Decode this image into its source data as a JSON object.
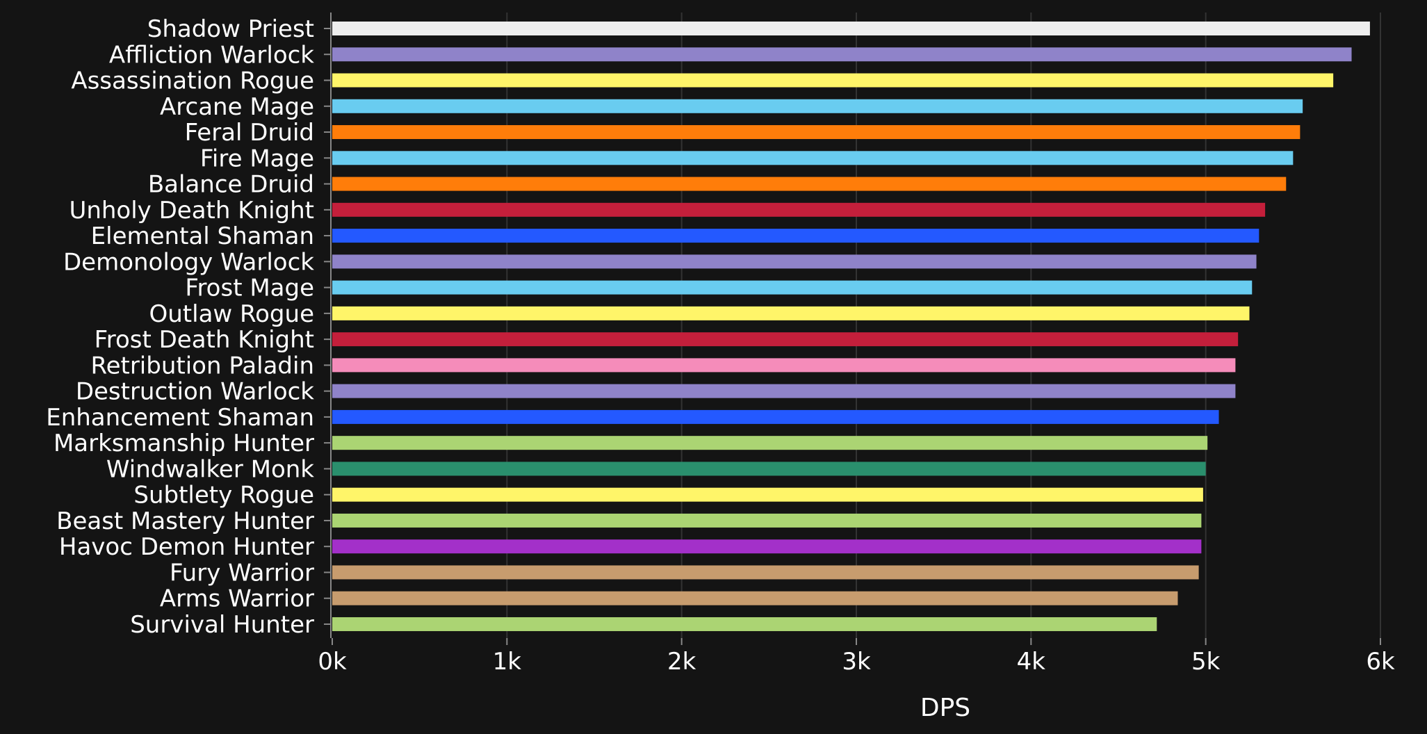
{
  "chart_data": {
    "type": "bar",
    "orientation": "horizontal",
    "xlabel": "DPS",
    "ylabel": "",
    "xlim": [
      0,
      6000
    ],
    "xticks": [
      {
        "value": 0,
        "label": "0k"
      },
      {
        "value": 1000,
        "label": "1k"
      },
      {
        "value": 2000,
        "label": "2k"
      },
      {
        "value": 3000,
        "label": "3k"
      },
      {
        "value": 4000,
        "label": "4k"
      },
      {
        "value": 5000,
        "label": "5k"
      },
      {
        "value": 6000,
        "label": "6k"
      }
    ],
    "grid": "vertical",
    "legend": "none",
    "bars": [
      {
        "category": "Shadow Priest",
        "value": 5940,
        "color": "#eeeeee"
      },
      {
        "category": "Affliction Warlock",
        "value": 5835,
        "color": "#8f83c9"
      },
      {
        "category": "Assassination Rogue",
        "value": 5730,
        "color": "#fff569"
      },
      {
        "category": "Arcane Mage",
        "value": 5555,
        "color": "#69ccf0"
      },
      {
        "category": "Feral Druid",
        "value": 5540,
        "color": "#ff7d0a"
      },
      {
        "category": "Fire Mage",
        "value": 5500,
        "color": "#69ccf0"
      },
      {
        "category": "Balance Druid",
        "value": 5460,
        "color": "#ff7d0a"
      },
      {
        "category": "Unholy Death Knight",
        "value": 5340,
        "color": "#c41f3b"
      },
      {
        "category": "Elemental Shaman",
        "value": 5305,
        "color": "#2459ff"
      },
      {
        "category": "Demonology Warlock",
        "value": 5290,
        "color": "#8f83c9"
      },
      {
        "category": "Frost Mage",
        "value": 5265,
        "color": "#69ccf0"
      },
      {
        "category": "Outlaw Rogue",
        "value": 5250,
        "color": "#fff569"
      },
      {
        "category": "Frost Death Knight",
        "value": 5185,
        "color": "#c41f3b"
      },
      {
        "category": "Retribution Paladin",
        "value": 5170,
        "color": "#f58cba"
      },
      {
        "category": "Destruction Warlock",
        "value": 5170,
        "color": "#8f83c9"
      },
      {
        "category": "Enhancement Shaman",
        "value": 5075,
        "color": "#2459ff"
      },
      {
        "category": "Marksmanship Hunter",
        "value": 5010,
        "color": "#abd473"
      },
      {
        "category": "Windwalker Monk",
        "value": 5000,
        "color": "#2a8f6d"
      },
      {
        "category": "Subtlety Rogue",
        "value": 4985,
        "color": "#fff569"
      },
      {
        "category": "Beast Mastery Hunter",
        "value": 4975,
        "color": "#abd473"
      },
      {
        "category": "Havoc Demon Hunter",
        "value": 4975,
        "color": "#a330c9"
      },
      {
        "category": "Fury Warrior",
        "value": 4960,
        "color": "#c79c6e"
      },
      {
        "category": "Arms Warrior",
        "value": 4840,
        "color": "#c79c6e"
      },
      {
        "category": "Survival Hunter",
        "value": 4720,
        "color": "#abd473"
      }
    ]
  }
}
